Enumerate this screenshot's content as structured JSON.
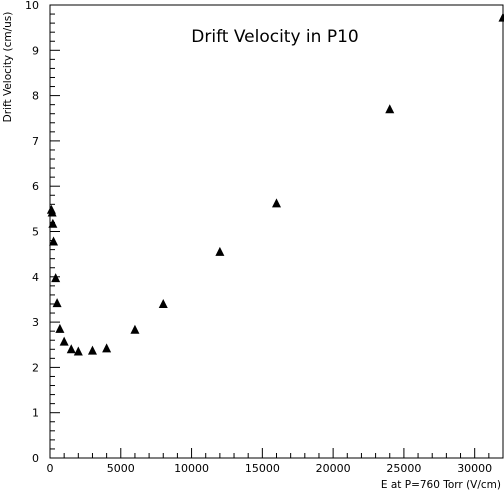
{
  "chart_data": {
    "type": "scatter",
    "title": "Drift Velocity in P10",
    "xlabel": "E at P=760 Torr (V/cm)",
    "ylabel": "Drift Velocity (cm/us)",
    "xlim": [
      0,
      32000
    ],
    "ylim": [
      0,
      10
    ],
    "x_ticks": [
      0,
      5000,
      10000,
      15000,
      20000,
      25000,
      30000
    ],
    "y_ticks": [
      0,
      1,
      2,
      3,
      4,
      5,
      6,
      7,
      8,
      9,
      10
    ],
    "grid": false,
    "marker": "triangle",
    "marker_color": "#000000",
    "series": [
      {
        "points": [
          {
            "x": 100,
            "y": 5.48
          },
          {
            "x": 150,
            "y": 5.42
          },
          {
            "x": 200,
            "y": 5.17
          },
          {
            "x": 250,
            "y": 4.78
          },
          {
            "x": 400,
            "y": 3.97
          },
          {
            "x": 500,
            "y": 3.42
          },
          {
            "x": 700,
            "y": 2.85
          },
          {
            "x": 1000,
            "y": 2.57
          },
          {
            "x": 1500,
            "y": 2.4
          },
          {
            "x": 2000,
            "y": 2.35
          },
          {
            "x": 3000,
            "y": 2.37
          },
          {
            "x": 4000,
            "y": 2.42
          },
          {
            "x": 6000,
            "y": 2.83
          },
          {
            "x": 8000,
            "y": 3.4
          },
          {
            "x": 12000,
            "y": 4.55
          },
          {
            "x": 16000,
            "y": 5.62
          },
          {
            "x": 24000,
            "y": 7.7
          },
          {
            "x": 32000,
            "y": 9.72
          }
        ]
      }
    ]
  }
}
